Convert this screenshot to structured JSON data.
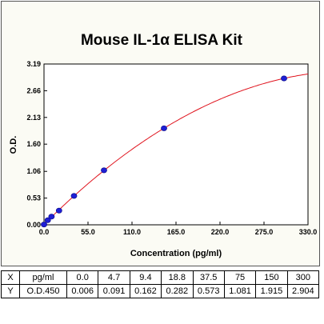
{
  "chart_data": {
    "type": "scatter",
    "title": "Mouse IL-1α ELISA Kit",
    "xlabel": "Concentration (pg/ml)",
    "ylabel": "O.D.",
    "xlim": [
      0,
      330
    ],
    "ylim": [
      0,
      3.19
    ],
    "xticks": [
      "0.0",
      "55.0",
      "110.0",
      "165.0",
      "220.0",
      "275.0",
      "330.0"
    ],
    "yticks": [
      "0.00",
      "0.53",
      "1.06",
      "1.60",
      "2.13",
      "2.66",
      "3.19"
    ],
    "grid": false,
    "series": [
      {
        "x": [
          0.0,
          4.7,
          9.4,
          18.8,
          37.5,
          75,
          150,
          300
        ],
        "y": [
          0.006,
          0.091,
          0.162,
          0.282,
          0.573,
          1.081,
          1.915,
          2.904
        ]
      }
    ],
    "fit_curve": true,
    "marker_color": "#1f1fd6",
    "curve_color": "#e0141e"
  },
  "table": {
    "row_x": {
      "head": "X",
      "unit": "pg/ml",
      "values": [
        "0.0",
        "4.7",
        "9.4",
        "18.8",
        "37.5",
        "75",
        "150",
        "300"
      ]
    },
    "row_y": {
      "head": "Y",
      "unit": "O.D.450",
      "values": [
        "0.006",
        "0.091",
        "0.162",
        "0.282",
        "0.573",
        "1.081",
        "1.915",
        "2.904"
      ]
    }
  }
}
